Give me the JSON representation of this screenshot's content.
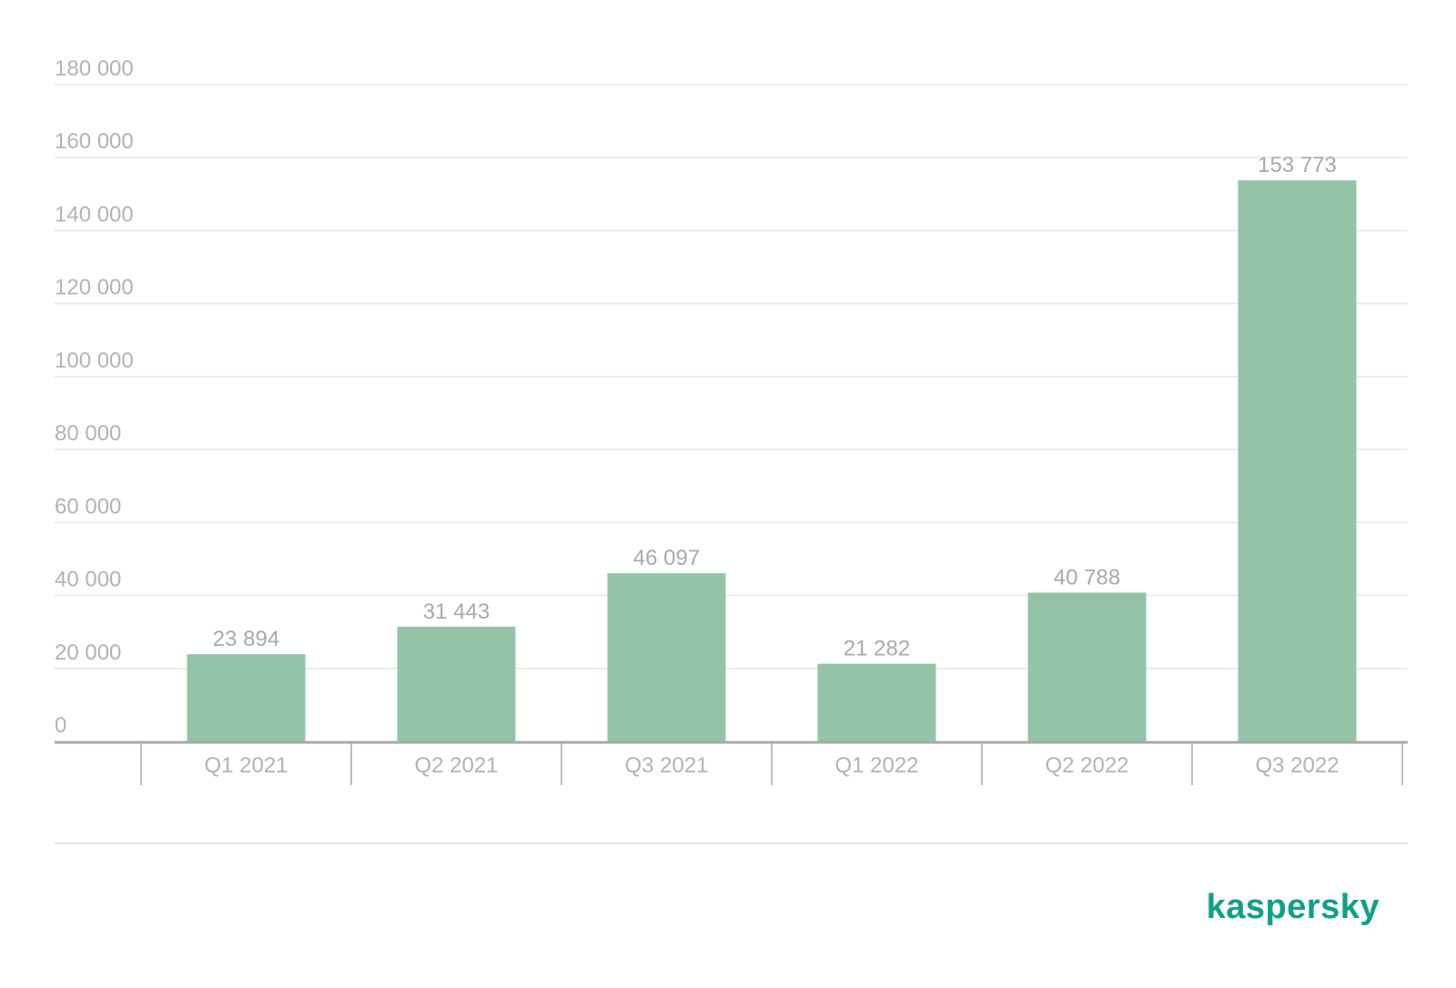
{
  "chart_data": {
    "type": "bar",
    "categories": [
      "Q1 2021",
      "Q2 2021",
      "Q3 2021",
      "Q1 2022",
      "Q2 2022",
      "Q3 2022"
    ],
    "values": [
      23894,
      31443,
      46097,
      21282,
      40788,
      153773
    ],
    "value_labels": [
      "23 894",
      "31 443",
      "46 097",
      "21 282",
      "40 788",
      "153 773"
    ],
    "y_ticks": [
      0,
      20000,
      40000,
      60000,
      80000,
      100000,
      120000,
      140000,
      160000,
      180000
    ],
    "y_tick_labels": [
      "0",
      "20 000",
      "40 000",
      "60 000",
      "80 000",
      "100 000",
      "120 000",
      "140 000",
      "160 000",
      "180 000"
    ],
    "ylim": [
      0,
      180000
    ],
    "grid": true,
    "colors": {
      "bar": "#93c4a8",
      "text": "#b3b3b3",
      "grid": "#e6e6e6",
      "axis": "#a8a8a8"
    }
  },
  "brand": {
    "name": "kaspersky",
    "color": "#10a086"
  }
}
